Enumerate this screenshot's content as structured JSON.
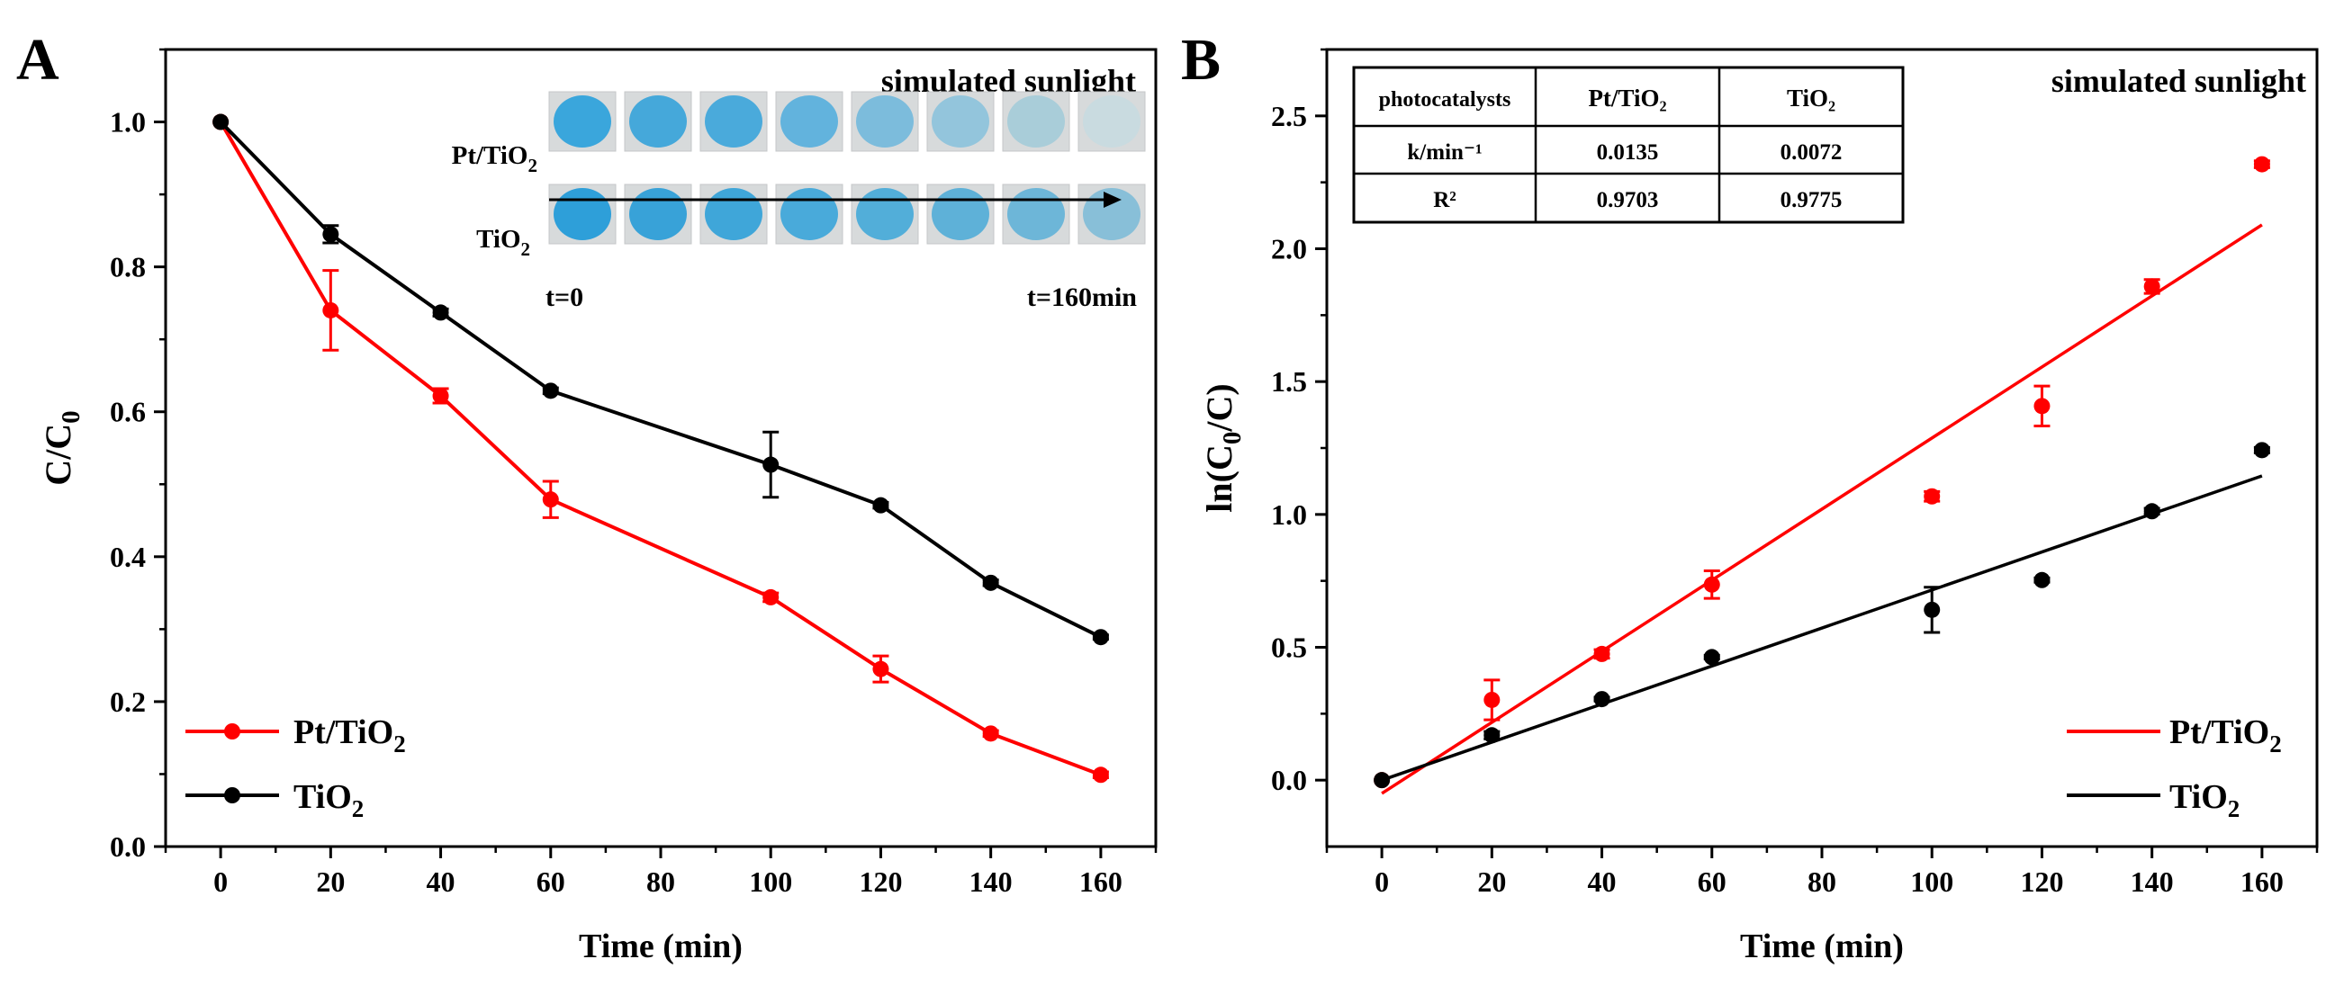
{
  "panels": {
    "a": {
      "letter": "A",
      "annotation": "simulated sunlight",
      "inset": {
        "row1_label": "Pt/TiO",
        "row1_sub": "2",
        "row2_label": "TiO",
        "row2_sub": "2",
        "start_label": "t=0",
        "end_label": "t=160min",
        "row1_colors": [
          "#3aa6dc",
          "#45a8da",
          "#4aaadb",
          "#62b3dd",
          "#7cbcdc",
          "#93c5dc",
          "#a9cdd9",
          "#c9dbe0"
        ],
        "row2_colors": [
          "#2e9fd9",
          "#38a2d8",
          "#3fa6d9",
          "#49aada",
          "#52aed9",
          "#5eb1d8",
          "#6db6d8",
          "#88bfd8"
        ]
      },
      "legend": [
        {
          "label": "Pt/TiO",
          "sub": "2",
          "color": "#ff0000"
        },
        {
          "label": "TiO",
          "sub": "2",
          "color": "#000000"
        }
      ]
    },
    "b": {
      "letter": "B",
      "annotation": "simulated sunlight",
      "table": {
        "header": [
          "photocatalysts",
          "Pt/TiO₂",
          "TiO₂"
        ],
        "rows": [
          [
            "k/min⁻¹",
            "0.0135",
            "0.0072"
          ],
          [
            "R²",
            "0.9703",
            "0.9775"
          ]
        ]
      },
      "legend": [
        {
          "label": "Pt/TiO",
          "sub": "2",
          "color": "#ff0000"
        },
        {
          "label": "TiO",
          "sub": "2",
          "color": "#000000"
        }
      ]
    }
  },
  "chart_data": [
    {
      "type": "line",
      "xlabel": "Time (min)",
      "ylabel": "C/C0",
      "xlim": [
        -10,
        170
      ],
      "ylim": [
        0,
        1.1
      ],
      "xticks": [
        0,
        20,
        40,
        60,
        80,
        100,
        120,
        140,
        160
      ],
      "yticks": [
        0.0,
        0.2,
        0.4,
        0.6,
        0.8,
        1.0
      ],
      "series": [
        {
          "name": "Pt/TiO2",
          "color": "#ff0000",
          "x": [
            0,
            20,
            40,
            60,
            100,
            120,
            140,
            160
          ],
          "y": [
            1.0,
            0.74,
            0.622,
            0.479,
            0.344,
            0.245,
            0.156,
            0.099
          ],
          "err": [
            0,
            0.055,
            0.01,
            0.025,
            0.006,
            0.018,
            0.004,
            0.004
          ]
        },
        {
          "name": "TiO2",
          "color": "#000000",
          "x": [
            0,
            20,
            40,
            60,
            100,
            120,
            140,
            160
          ],
          "y": [
            1.0,
            0.845,
            0.737,
            0.629,
            0.527,
            0.471,
            0.364,
            0.289
          ],
          "err": [
            0,
            0.012,
            0.005,
            0.004,
            0.045,
            0.004,
            0.004,
            0.003
          ]
        }
      ]
    },
    {
      "type": "scatter",
      "xlabel": "Time (min)",
      "ylabel": "ln(C0/C)",
      "xlim": [
        -10,
        170
      ],
      "ylim": [
        -0.25,
        2.75
      ],
      "xticks": [
        0,
        20,
        40,
        60,
        80,
        100,
        120,
        140,
        160
      ],
      "yticks": [
        0.0,
        0.5,
        1.0,
        1.5,
        2.0,
        2.5
      ],
      "series": [
        {
          "name": "Pt/TiO2",
          "color": "#ff0000",
          "x": [
            0,
            20,
            40,
            60,
            100,
            120,
            140,
            160
          ],
          "y": [
            0.0,
            0.302,
            0.475,
            0.736,
            1.068,
            1.408,
            1.858,
            2.318
          ],
          "err": [
            0,
            0.075,
            0.016,
            0.052,
            0.018,
            0.075,
            0.026,
            0.013
          ],
          "fit": {
            "x": [
              0,
              160
            ],
            "y": [
              -0.05,
              2.09
            ]
          }
        },
        {
          "name": "TiO2",
          "color": "#000000",
          "x": [
            0,
            20,
            40,
            60,
            100,
            120,
            140,
            160
          ],
          "y": [
            0.0,
            0.169,
            0.305,
            0.463,
            0.641,
            0.753,
            1.012,
            1.242
          ],
          "err": [
            0,
            0.014,
            0.007,
            0.007,
            0.085,
            0.008,
            0.011,
            0.01
          ],
          "fit": {
            "x": [
              0,
              160
            ],
            "y": [
              0.0,
              1.145
            ]
          }
        }
      ]
    }
  ]
}
